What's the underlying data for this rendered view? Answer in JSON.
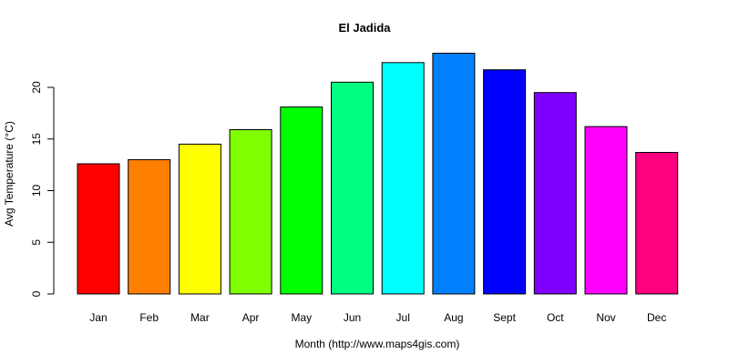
{
  "chart_data": {
    "type": "bar",
    "title": "El Jadida",
    "xlabel": "Month (http://www.maps4gis.com)",
    "ylabel": "Avg Temperature (°C)",
    "categories": [
      "Jan",
      "Feb",
      "Mar",
      "Apr",
      "May",
      "Jun",
      "Jul",
      "Aug",
      "Sept",
      "Oct",
      "Nov",
      "Dec"
    ],
    "values": [
      12.6,
      13.0,
      14.5,
      15.9,
      18.1,
      20.5,
      22.4,
      23.3,
      21.7,
      19.5,
      16.2,
      13.7
    ],
    "colors": [
      "#FF0000",
      "#FF8000",
      "#FFFF00",
      "#80FF00",
      "#00FF00",
      "#00FF80",
      "#00FFFF",
      "#0080FF",
      "#0000FF",
      "#8000FF",
      "#FF00FF",
      "#FF0080"
    ],
    "yticks": [
      0,
      5,
      10,
      15,
      20
    ],
    "ylim": [
      0,
      20
    ],
    "grid": false,
    "legend": null
  }
}
